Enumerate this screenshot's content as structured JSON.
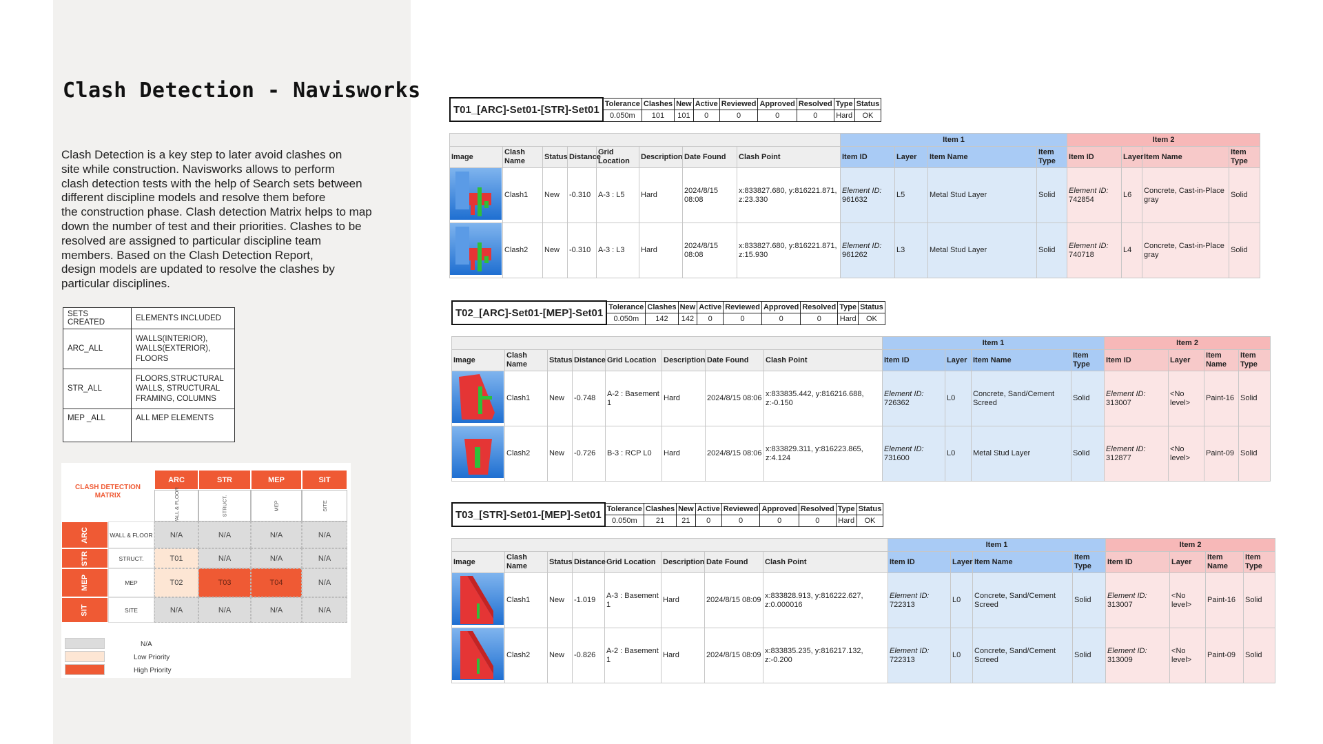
{
  "page": {
    "title": "Clash Detection - Navisworks",
    "intro_lines": [
      "Clash Detection is a key step to later avoid clashes on",
      "site while construction. Navisworks allows to perform",
      "clash detection tests with the help of Search sets between",
      "different discipline models and resolve them before",
      "the construction phase. Clash detection Matrix helps to map",
      "down the number of test and their priorities. Clashes to be",
      "resolved are assigned to particular discipline team",
      "members. Based on the Clash Detection Report,",
      "design models are updated to resolve the clashes by",
      "particular disciplines."
    ]
  },
  "sets_table": {
    "headers": [
      "SETS CREATED",
      "ELEMENTS INCLUDED"
    ],
    "rows": [
      {
        "set": "ARC_ALL",
        "elements": [
          "WALLS(INTERIOR),",
          "WALLS(EXTERIOR),",
          "FLOORS"
        ]
      },
      {
        "set": "STR_ALL",
        "elements": [
          "FLOORS,STRUCTURAL",
          "WALLS, STRUCTURAL",
          "FRAMING, COLUMNS"
        ]
      },
      {
        "set": "MEP _ALL",
        "elements": [
          "ALL MEP ELEMENTS"
        ]
      }
    ]
  },
  "matrix": {
    "title_line1": "CLASH DETECTION",
    "title_line2": "MATRIX",
    "columns": [
      {
        "code": "ARC",
        "sub": "WALL & FLOOR"
      },
      {
        "code": "STR",
        "sub": "STRUCT."
      },
      {
        "code": "MEP",
        "sub": "MEP"
      },
      {
        "code": "SIT",
        "sub": "SITE"
      }
    ],
    "rows": [
      {
        "code": "ARC",
        "sub": "WALL & FLOOR",
        "cells": [
          {
            "t": "N/A",
            "p": "na"
          },
          {
            "t": "N/A",
            "p": "na"
          },
          {
            "t": "N/A",
            "p": "na"
          },
          {
            "t": "N/A",
            "p": "na"
          }
        ]
      },
      {
        "code": "STR",
        "sub": "STRUCT.",
        "cells": [
          {
            "t": "T01",
            "p": "low"
          },
          {
            "t": "N/A",
            "p": "na"
          },
          {
            "t": "N/A",
            "p": "na"
          },
          {
            "t": "N/A",
            "p": "na"
          }
        ]
      },
      {
        "code": "MEP",
        "sub": "MEP",
        "cells": [
          {
            "t": "T02",
            "p": "low"
          },
          {
            "t": "T03",
            "p": "high"
          },
          {
            "t": "T04",
            "p": "high"
          },
          {
            "t": "N/A",
            "p": "na"
          }
        ]
      },
      {
        "code": "SIT",
        "sub": "SITE",
        "cells": [
          {
            "t": "N/A",
            "p": "na"
          },
          {
            "t": "N/A",
            "p": "na"
          },
          {
            "t": "N/A",
            "p": "na"
          },
          {
            "t": "N/A",
            "p": "na"
          }
        ]
      }
    ],
    "legend": [
      {
        "label": "N/A",
        "color": "#dcdcdc"
      },
      {
        "label": "Low Priority",
        "color": "#fde6d4"
      },
      {
        "label": "High Priority",
        "color": "#ef5a34"
      }
    ]
  },
  "summary_headers": [
    "Tolerance",
    "Clashes",
    "New",
    "Active",
    "Reviewed",
    "Approved",
    "Resolved",
    "Type",
    "Status"
  ],
  "detail_headers": [
    "Image",
    "Clash Name",
    "Status",
    "Distance",
    "Grid Location",
    "Description",
    "Date Found",
    "Clash Point",
    "Item ID",
    "Layer",
    "Item Name",
    "Item Type",
    "Item ID",
    "Layer",
    "Item Name",
    "Item Type"
  ],
  "group_labels": {
    "item1": "Item 1",
    "item2": "Item 2"
  },
  "element_id_label": "Element ID:",
  "reports": [
    {
      "name": "T01_[ARC]-Set01-[STR]-Set01",
      "summary": [
        "0.050m",
        "101",
        "101",
        "0",
        "0",
        "0",
        "0",
        "Hard",
        "OK"
      ],
      "rows": [
        {
          "name": "Clash1",
          "status": "New",
          "distance": "-0.310",
          "grid": "A-3 : L5",
          "desc": "Hard",
          "date": "2024/8/15 08:08",
          "point": "x:833827.680, y:816221.871, z:23.330",
          "i1_id": "961632",
          "i1_layer": "L5",
          "i1_name": "Metal Stud Layer",
          "i1_type": "Solid",
          "i2_id": "742854",
          "i2_layer": "L6",
          "i2_name": "Concrete, Cast-in-Place gray",
          "i2_type": "Solid"
        },
        {
          "name": "Clash2",
          "status": "New",
          "distance": "-0.310",
          "grid": "A-3 : L3",
          "desc": "Hard",
          "date": "2024/8/15 08:08",
          "point": "x:833827.680, y:816221.871, z:15.930",
          "i1_id": "961262",
          "i1_layer": "L3",
          "i1_name": "Metal Stud Layer",
          "i1_type": "Solid",
          "i2_id": "740718",
          "i2_layer": "L4",
          "i2_name": "Concrete, Cast-in-Place gray",
          "i2_type": "Solid"
        }
      ]
    },
    {
      "name": "T02_[ARC]-Set01-[MEP]-Set01",
      "summary": [
        "0.050m",
        "142",
        "142",
        "0",
        "0",
        "0",
        "0",
        "Hard",
        "OK"
      ],
      "rows": [
        {
          "name": "Clash1",
          "status": "New",
          "distance": "-0.748",
          "grid": "A-2 : Basement 1",
          "desc": "Hard",
          "date": "2024/8/15 08:06",
          "point": "x:833835.442, y:816216.688, z:-0.150",
          "i1_id": "726362",
          "i1_layer": "L0",
          "i1_name": "Concrete, Sand/Cement Screed",
          "i1_type": "Solid",
          "i2_id": "313007",
          "i2_layer": "<No level>",
          "i2_name": "Paint-16",
          "i2_type": "Solid"
        },
        {
          "name": "Clash2",
          "status": "New",
          "distance": "-0.726",
          "grid": "B-3 : RCP L0",
          "desc": "Hard",
          "date": "2024/8/15 08:06",
          "point": "x:833829.311, y:816223.865, z:4.124",
          "i1_id": "731600",
          "i1_layer": "L0",
          "i1_name": "Metal Stud Layer",
          "i1_type": "Solid",
          "i2_id": "312877",
          "i2_layer": "<No level>",
          "i2_name": "Paint-09",
          "i2_type": "Solid"
        }
      ]
    },
    {
      "name": "T03_[STR]-Set01-[MEP]-Set01",
      "summary": [
        "0.050m",
        "21",
        "21",
        "0",
        "0",
        "0",
        "0",
        "Hard",
        "OK"
      ],
      "rows": [
        {
          "name": "Clash1",
          "status": "New",
          "distance": "-1.019",
          "grid": "A-3 : Basement 1",
          "desc": "Hard",
          "date": "2024/8/15 08:09",
          "point": "x:833828.913, y:816222.627, z:0.000016",
          "i1_id": "722313",
          "i1_layer": "L0",
          "i1_name": "Concrete, Sand/Cement Screed",
          "i1_type": "Solid",
          "i2_id": "313007",
          "i2_layer": "<No level>",
          "i2_name": "Paint-16",
          "i2_type": "Solid"
        },
        {
          "name": "Clash2",
          "status": "New",
          "distance": "-0.826",
          "grid": "A-2 : Basement 1",
          "desc": "Hard",
          "date": "2024/8/15 08:09",
          "point": "x:833835.235, y:816217.132, z:-0.200",
          "i1_id": "722313",
          "i1_layer": "L0",
          "i1_name": "Concrete, Sand/Cement Screed",
          "i1_type": "Solid",
          "i2_id": "313009",
          "i2_layer": "<No level>",
          "i2_name": "Paint-09",
          "i2_type": "Solid"
        }
      ]
    }
  ]
}
